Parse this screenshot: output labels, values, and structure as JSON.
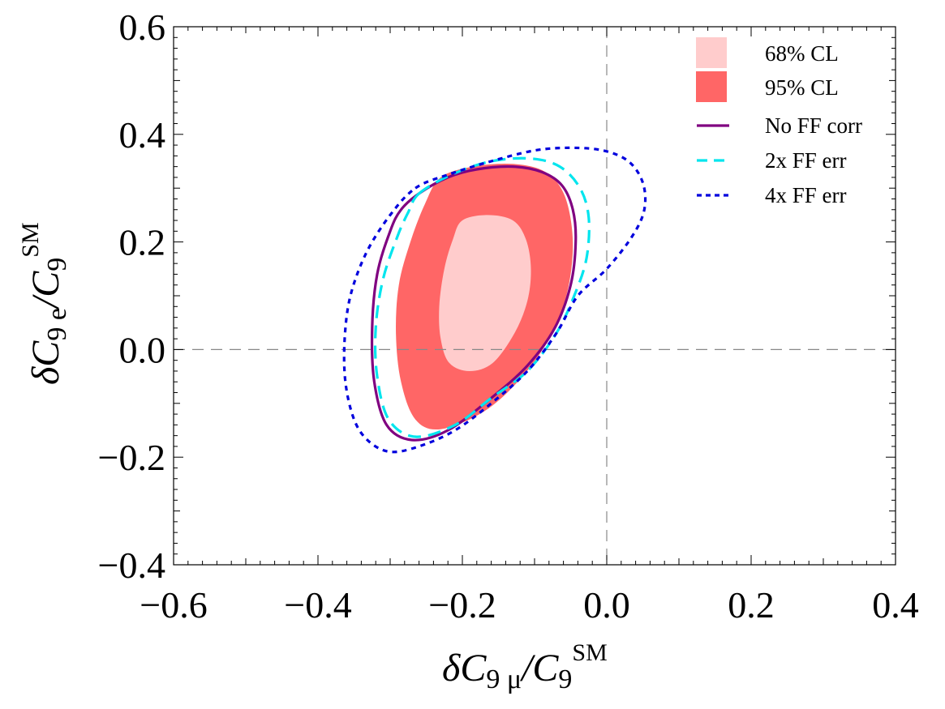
{
  "chart_data": {
    "type": "contour",
    "title": "",
    "xlabel": {
      "main": "δC",
      "sub": "9 μ",
      "slash": "/C",
      "sub2": "9",
      "sup": "SM"
    },
    "ylabel": {
      "main": "δC",
      "sub": "9 e",
      "slash": "/C",
      "sub2": "9",
      "sup": "SM"
    },
    "xlim": [
      -0.6,
      0.4
    ],
    "ylim": [
      -0.4,
      0.6
    ],
    "xticks": [
      -0.6,
      -0.4,
      -0.2,
      0.0,
      0.2,
      0.4
    ],
    "xtick_labels": [
      "−0.6",
      "−0.4",
      "−0.2",
      "0.0",
      "0.2",
      "0.4"
    ],
    "yticks": [
      -0.4,
      -0.2,
      0.0,
      0.2,
      0.4,
      0.6
    ],
    "ytick_labels": [
      "−0.4",
      "−0.2",
      "0.0",
      "0.2",
      "0.4",
      "0.6"
    ],
    "reference_lines": {
      "x": 0.0,
      "y": 0.0
    },
    "legend_position": "top-right",
    "series": [
      {
        "name": "95% CL",
        "kind": "filled",
        "color": "#ff6666",
        "points": [
          [
            -0.23,
            0.32
          ],
          [
            -0.185,
            0.34
          ],
          [
            -0.13,
            0.345
          ],
          [
            -0.085,
            0.33
          ],
          [
            -0.058,
            0.285
          ],
          [
            -0.047,
            0.2
          ],
          [
            -0.055,
            0.105
          ],
          [
            -0.08,
            0.02
          ],
          [
            -0.12,
            -0.055
          ],
          [
            -0.17,
            -0.115
          ],
          [
            -0.23,
            -0.148
          ],
          [
            -0.265,
            -0.13
          ],
          [
            -0.285,
            -0.06
          ],
          [
            -0.292,
            0.03
          ],
          [
            -0.288,
            0.12
          ],
          [
            -0.272,
            0.2
          ],
          [
            -0.252,
            0.27
          ]
        ]
      },
      {
        "name": "68% CL",
        "kind": "filled",
        "color": "#ffcccc",
        "points": [
          [
            -0.2,
            0.24
          ],
          [
            -0.165,
            0.25
          ],
          [
            -0.13,
            0.24
          ],
          [
            -0.112,
            0.205
          ],
          [
            -0.105,
            0.15
          ],
          [
            -0.11,
            0.09
          ],
          [
            -0.128,
            0.03
          ],
          [
            -0.158,
            -0.025
          ],
          [
            -0.19,
            -0.04
          ],
          [
            -0.218,
            -0.025
          ],
          [
            -0.23,
            0.02
          ],
          [
            -0.232,
            0.08
          ],
          [
            -0.225,
            0.15
          ],
          [
            -0.213,
            0.205
          ]
        ]
      },
      {
        "name": "No FF corr",
        "kind": "solid",
        "color": "#800080",
        "points": [
          [
            -0.26,
            0.29
          ],
          [
            -0.22,
            0.32
          ],
          [
            -0.18,
            0.335
          ],
          [
            -0.13,
            0.34
          ],
          [
            -0.09,
            0.33
          ],
          [
            -0.062,
            0.305
          ],
          [
            -0.047,
            0.26
          ],
          [
            -0.043,
            0.2
          ],
          [
            -0.05,
            0.12
          ],
          [
            -0.072,
            0.04
          ],
          [
            -0.11,
            -0.03
          ],
          [
            -0.16,
            -0.09
          ],
          [
            -0.22,
            -0.15
          ],
          [
            -0.27,
            -0.168
          ],
          [
            -0.305,
            -0.14
          ],
          [
            -0.322,
            -0.06
          ],
          [
            -0.325,
            0.04
          ],
          [
            -0.318,
            0.14
          ],
          [
            -0.3,
            0.22
          ],
          [
            -0.285,
            0.26
          ]
        ]
      },
      {
        "name": "2x FF err",
        "kind": "dashed",
        "color": "#00e5ee",
        "points": [
          [
            -0.26,
            0.29
          ],
          [
            -0.215,
            0.325
          ],
          [
            -0.16,
            0.35
          ],
          [
            -0.105,
            0.355
          ],
          [
            -0.065,
            0.34
          ],
          [
            -0.037,
            0.3
          ],
          [
            -0.025,
            0.245
          ],
          [
            -0.028,
            0.17
          ],
          [
            -0.045,
            0.1
          ],
          [
            -0.07,
            0.03
          ],
          [
            -0.11,
            -0.04
          ],
          [
            -0.16,
            -0.09
          ],
          [
            -0.21,
            -0.14
          ],
          [
            -0.265,
            -0.162
          ],
          [
            -0.302,
            -0.13
          ],
          [
            -0.318,
            -0.05
          ],
          [
            -0.32,
            0.04
          ],
          [
            -0.31,
            0.13
          ],
          [
            -0.29,
            0.21
          ],
          [
            -0.275,
            0.255
          ]
        ]
      },
      {
        "name": "4x FF err",
        "kind": "dotted",
        "color": "#0000dd",
        "points": [
          [
            -0.265,
            0.3
          ],
          [
            -0.22,
            0.325
          ],
          [
            -0.16,
            0.35
          ],
          [
            -0.1,
            0.37
          ],
          [
            -0.05,
            0.375
          ],
          [
            -0.005,
            0.37
          ],
          [
            0.03,
            0.35
          ],
          [
            0.05,
            0.31
          ],
          [
            0.052,
            0.26
          ],
          [
            0.035,
            0.21
          ],
          [
            0.0,
            0.15
          ],
          [
            -0.04,
            0.1
          ],
          [
            -0.07,
            0.03
          ],
          [
            -0.11,
            -0.04
          ],
          [
            -0.16,
            -0.1
          ],
          [
            -0.21,
            -0.15
          ],
          [
            -0.26,
            -0.18
          ],
          [
            -0.3,
            -0.19
          ],
          [
            -0.33,
            -0.17
          ],
          [
            -0.35,
            -0.13
          ],
          [
            -0.362,
            -0.06
          ],
          [
            -0.363,
            0.02
          ],
          [
            -0.355,
            0.1
          ],
          [
            -0.333,
            0.18
          ],
          [
            -0.3,
            0.25
          ]
        ]
      }
    ],
    "legend": [
      {
        "label": "68% CL",
        "kind": "box",
        "color": "#ffcccc"
      },
      {
        "label": "95% CL",
        "kind": "box",
        "color": "#ff6666"
      },
      {
        "label": "No FF corr",
        "kind": "solid",
        "color": "#800080"
      },
      {
        "label": "2x FF err",
        "kind": "dashed",
        "color": "#00e5ee"
      },
      {
        "label": "4x FF err",
        "kind": "dotted",
        "color": "#0000dd"
      }
    ]
  }
}
